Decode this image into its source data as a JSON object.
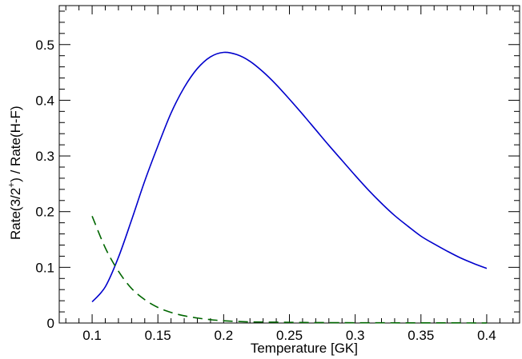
{
  "chart_data": {
    "type": "line",
    "xlabel": "Temperature [GK]",
    "ylabel": "Rate(3/2+) / Rate(H-F)",
    "ylabel_parts": {
      "before": "Rate(3/2",
      "sup": "+",
      "after": ") / Rate(H-F)"
    },
    "xlim": [
      0.075,
      0.425
    ],
    "ylim": [
      0,
      0.57
    ],
    "x_ticks": [
      0.1,
      0.15,
      0.2,
      0.25,
      0.3,
      0.35,
      0.4
    ],
    "x_tick_labels": [
      "0.1",
      "0.15",
      "0.2",
      "0.25",
      "0.3",
      "0.35",
      "0.4"
    ],
    "y_ticks": [
      0,
      0.1,
      0.2,
      0.3,
      0.4,
      0.5
    ],
    "y_tick_labels": [
      "0",
      "0.1",
      "0.2",
      "0.3",
      "0.4",
      "0.5"
    ],
    "grid": false,
    "series": [
      {
        "color": "#0000cc",
        "style": "solid",
        "x": [
          0.1,
          0.11,
          0.12,
          0.13,
          0.14,
          0.15,
          0.16,
          0.17,
          0.18,
          0.19,
          0.2,
          0.21,
          0.22,
          0.23,
          0.24,
          0.25,
          0.26,
          0.27,
          0.28,
          0.29,
          0.3,
          0.31,
          0.32,
          0.33,
          0.34,
          0.35,
          0.36,
          0.37,
          0.38,
          0.39,
          0.4
        ],
        "y": [
          0.038,
          0.065,
          0.118,
          0.185,
          0.255,
          0.318,
          0.377,
          0.423,
          0.457,
          0.478,
          0.486,
          0.482,
          0.47,
          0.451,
          0.428,
          0.402,
          0.375,
          0.347,
          0.319,
          0.292,
          0.265,
          0.239,
          0.215,
          0.193,
          0.174,
          0.156,
          0.142,
          0.129,
          0.117,
          0.107,
          0.098
        ]
      },
      {
        "color": "#006600",
        "style": "dashed",
        "x": [
          0.1,
          0.11,
          0.12,
          0.13,
          0.14,
          0.15,
          0.16,
          0.17,
          0.18,
          0.19,
          0.2,
          0.22,
          0.24,
          0.26,
          0.28,
          0.3,
          0.32,
          0.34,
          0.36,
          0.38,
          0.4
        ],
        "y": [
          0.192,
          0.135,
          0.093,
          0.062,
          0.042,
          0.028,
          0.019,
          0.013,
          0.009,
          0.006,
          0.004,
          0.002,
          0.0015,
          0.001,
          0.0007,
          0.0005,
          0.0004,
          0.0003,
          0.0002,
          0.0002,
          0.0001
        ]
      }
    ]
  }
}
